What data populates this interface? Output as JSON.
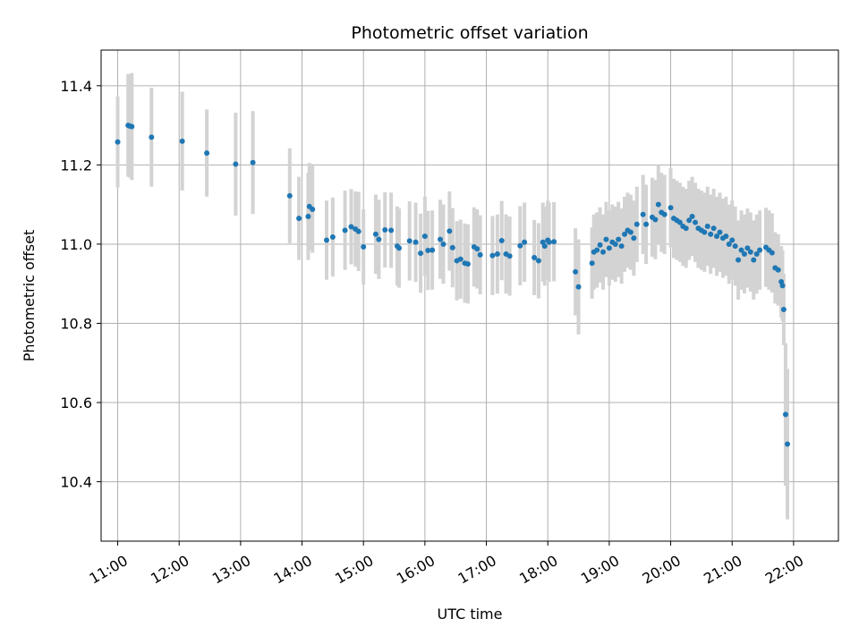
{
  "chart_data": {
    "type": "scatter",
    "title": "Photometric offset variation",
    "xlabel": "UTC time",
    "ylabel": "Photometric offset",
    "x_unit": "hour",
    "xlim": [
      10.73,
      22.73
    ],
    "ylim": [
      10.25,
      11.49
    ],
    "x_ticks": [
      11,
      12,
      13,
      14,
      15,
      16,
      17,
      18,
      19,
      20,
      21,
      22
    ],
    "x_tick_labels": [
      "11:00",
      "12:00",
      "13:00",
      "14:00",
      "15:00",
      "16:00",
      "17:00",
      "18:00",
      "19:00",
      "20:00",
      "21:00",
      "22:00"
    ],
    "y_ticks": [
      10.4,
      10.6,
      10.8,
      11.0,
      11.2,
      11.4
    ],
    "y_tick_labels": [
      "10.4",
      "10.6",
      "10.8",
      "11.0",
      "11.2",
      "11.4"
    ],
    "grid": true,
    "colors": {
      "points": "#1f77b4",
      "errorbars": "#d3d3d3",
      "grid": "#b0b0b0",
      "axes": "#000000"
    },
    "points": [
      [
        11.0,
        11.258,
        0.115
      ],
      [
        11.17,
        11.3,
        0.13
      ],
      [
        11.2,
        11.298,
        0.13
      ],
      [
        11.23,
        11.297,
        0.135
      ],
      [
        11.55,
        11.27,
        0.125
      ],
      [
        12.05,
        11.26,
        0.125
      ],
      [
        12.45,
        11.23,
        0.11
      ],
      [
        12.92,
        11.202,
        0.13
      ],
      [
        13.2,
        11.206,
        0.13
      ],
      [
        13.8,
        11.122,
        0.12
      ],
      [
        13.95,
        11.065,
        0.105
      ],
      [
        14.1,
        11.07,
        0.11
      ],
      [
        14.12,
        11.095,
        0.11
      ],
      [
        14.17,
        11.088,
        0.11
      ],
      [
        14.4,
        11.01,
        0.1
      ],
      [
        14.5,
        11.018,
        0.1
      ],
      [
        14.7,
        11.035,
        0.1
      ],
      [
        14.8,
        11.044,
        0.095
      ],
      [
        14.87,
        11.038,
        0.095
      ],
      [
        14.92,
        11.032,
        0.1
      ],
      [
        15.0,
        10.993,
        0.095
      ],
      [
        15.2,
        11.025,
        0.1
      ],
      [
        15.25,
        11.012,
        0.1
      ],
      [
        15.35,
        11.036,
        0.095
      ],
      [
        15.45,
        11.035,
        0.095
      ],
      [
        15.55,
        10.995,
        0.1
      ],
      [
        15.58,
        10.99,
        0.1
      ],
      [
        15.75,
        11.008,
        0.1
      ],
      [
        15.85,
        11.005,
        0.1
      ],
      [
        15.93,
        10.977,
        0.1
      ],
      [
        16.0,
        11.02,
        0.1
      ],
      [
        16.05,
        10.984,
        0.1
      ],
      [
        16.12,
        10.985,
        0.1
      ],
      [
        16.25,
        11.012,
        0.1
      ],
      [
        16.3,
        11.0,
        0.1
      ],
      [
        16.4,
        11.033,
        0.1
      ],
      [
        16.45,
        10.991,
        0.1
      ],
      [
        16.52,
        10.958,
        0.1
      ],
      [
        16.58,
        10.962,
        0.1
      ],
      [
        16.65,
        10.952,
        0.1
      ],
      [
        16.7,
        10.95,
        0.1
      ],
      [
        16.8,
        10.993,
        0.1
      ],
      [
        16.85,
        10.988,
        0.1
      ],
      [
        16.9,
        10.973,
        0.1
      ],
      [
        17.1,
        10.971,
        0.1
      ],
      [
        17.18,
        10.975,
        0.1
      ],
      [
        17.25,
        11.009,
        0.1
      ],
      [
        17.32,
        10.975,
        0.1
      ],
      [
        17.38,
        10.97,
        0.1
      ],
      [
        17.55,
        10.996,
        0.1
      ],
      [
        17.62,
        11.005,
        0.1
      ],
      [
        17.78,
        10.966,
        0.095
      ],
      [
        17.85,
        10.958,
        0.095
      ],
      [
        17.92,
        11.005,
        0.1
      ],
      [
        17.95,
        10.995,
        0.1
      ],
      [
        18.0,
        11.01,
        0.1
      ],
      [
        18.02,
        11.005,
        0.1
      ],
      [
        18.1,
        11.006,
        0.1
      ],
      [
        18.45,
        10.93,
        0.11
      ],
      [
        18.5,
        10.892,
        0.12
      ],
      [
        18.72,
        10.952,
        0.09
      ],
      [
        18.75,
        10.98,
        0.095
      ],
      [
        18.8,
        10.985,
        0.095
      ],
      [
        18.85,
        10.998,
        0.095
      ],
      [
        18.9,
        10.98,
        0.095
      ],
      [
        18.95,
        11.012,
        0.095
      ],
      [
        19.0,
        10.99,
        0.095
      ],
      [
        19.05,
        11.005,
        0.095
      ],
      [
        19.1,
        11.0,
        0.095
      ],
      [
        19.15,
        11.012,
        0.095
      ],
      [
        19.2,
        10.995,
        0.095
      ],
      [
        19.25,
        11.025,
        0.095
      ],
      [
        19.3,
        11.035,
        0.095
      ],
      [
        19.35,
        11.03,
        0.095
      ],
      [
        19.4,
        11.015,
        0.095
      ],
      [
        19.45,
        11.05,
        0.095
      ],
      [
        19.55,
        11.075,
        0.1
      ],
      [
        19.6,
        11.05,
        0.1
      ],
      [
        19.7,
        11.068,
        0.1
      ],
      [
        19.75,
        11.062,
        0.1
      ],
      [
        19.8,
        11.1,
        0.1
      ],
      [
        19.85,
        11.08,
        0.1
      ],
      [
        19.9,
        11.075,
        0.1
      ],
      [
        20.0,
        11.092,
        0.1
      ],
      [
        20.05,
        11.065,
        0.1
      ],
      [
        20.1,
        11.06,
        0.1
      ],
      [
        20.15,
        11.055,
        0.1
      ],
      [
        20.2,
        11.045,
        0.1
      ],
      [
        20.25,
        11.04,
        0.1
      ],
      [
        20.3,
        11.06,
        0.1
      ],
      [
        20.35,
        11.07,
        0.1
      ],
      [
        20.4,
        11.055,
        0.1
      ],
      [
        20.45,
        11.04,
        0.1
      ],
      [
        20.5,
        11.035,
        0.1
      ],
      [
        20.55,
        11.03,
        0.1
      ],
      [
        20.6,
        11.045,
        0.1
      ],
      [
        20.65,
        11.025,
        0.1
      ],
      [
        20.7,
        11.04,
        0.1
      ],
      [
        20.75,
        11.02,
        0.1
      ],
      [
        20.8,
        11.03,
        0.1
      ],
      [
        20.85,
        11.015,
        0.1
      ],
      [
        20.9,
        11.02,
        0.1
      ],
      [
        20.95,
        11.0,
        0.1
      ],
      [
        21.0,
        11.01,
        0.1
      ],
      [
        21.05,
        10.995,
        0.1
      ],
      [
        21.1,
        10.96,
        0.1
      ],
      [
        21.15,
        10.985,
        0.1
      ],
      [
        21.2,
        10.975,
        0.1
      ],
      [
        21.25,
        10.99,
        0.1
      ],
      [
        21.3,
        10.98,
        0.1
      ],
      [
        21.35,
        10.96,
        0.1
      ],
      [
        21.4,
        10.975,
        0.1
      ],
      [
        21.45,
        10.985,
        0.1
      ],
      [
        21.55,
        10.992,
        0.1
      ],
      [
        21.6,
        10.985,
        0.1
      ],
      [
        21.65,
        10.978,
        0.1
      ],
      [
        21.7,
        10.94,
        0.09
      ],
      [
        21.75,
        10.935,
        0.09
      ],
      [
        21.8,
        10.905,
        0.09
      ],
      [
        21.82,
        10.895,
        0.09
      ],
      [
        21.84,
        10.835,
        0.09
      ],
      [
        21.87,
        10.57,
        0.18
      ],
      [
        21.9,
        10.495,
        0.19
      ]
    ]
  }
}
